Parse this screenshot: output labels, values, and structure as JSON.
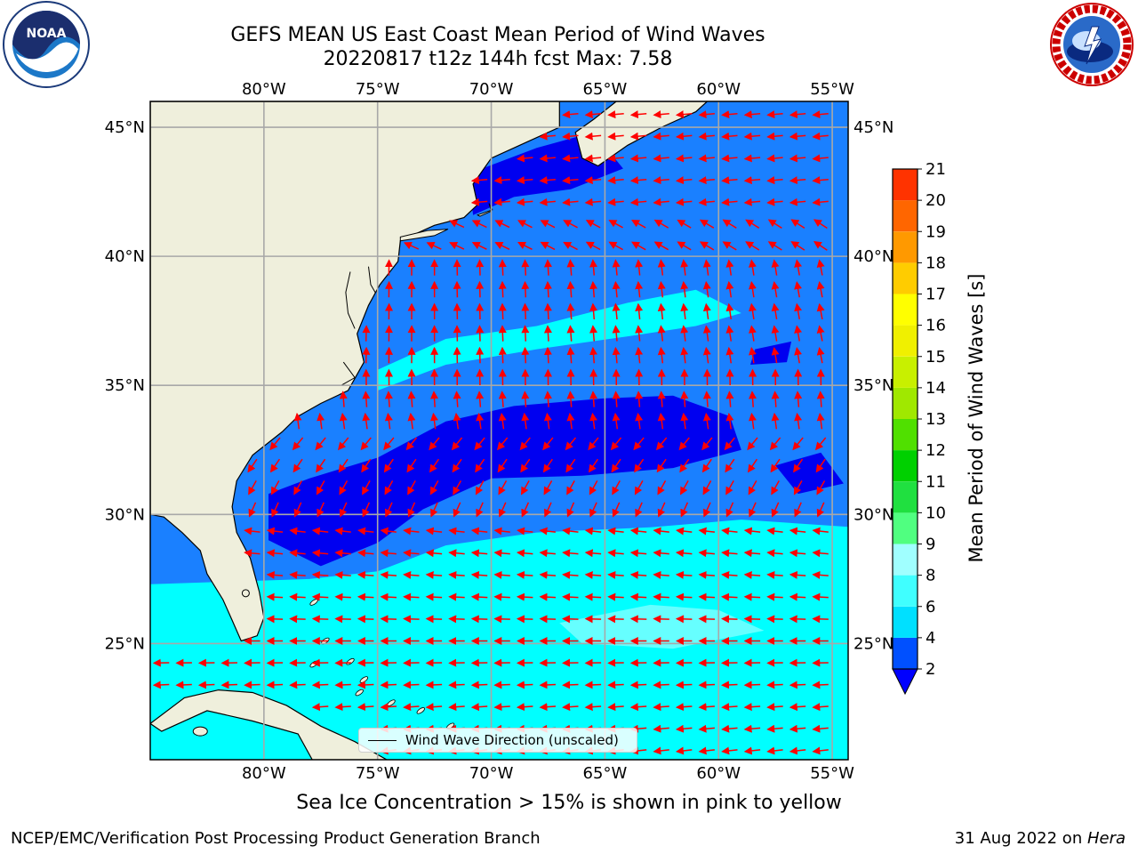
{
  "title": {
    "line1": "GEFS MEAN US East Coast Mean Period of Wind Waves",
    "line2": "20220817 t12z 144h fcst   Max: 7.58"
  },
  "map": {
    "projection": "PlateCarree",
    "lon_range": [
      -85,
      -54.3
    ],
    "lat_range": [
      20.5,
      46.0
    ],
    "lon_ticks": [
      -80,
      -75,
      -70,
      -65,
      -60,
      -55
    ],
    "lat_ticks": [
      25,
      30,
      35,
      40,
      45
    ],
    "lon_tick_labels": [
      "80°W",
      "75°W",
      "70°W",
      "65°W",
      "60°W",
      "55°W"
    ],
    "lat_tick_labels": [
      "25°N",
      "30°N",
      "35°N",
      "40°N",
      "45°N"
    ],
    "gridlines": true,
    "land_color": "#efefdc",
    "coastline_color": "#000000",
    "arrow_color": "#ff0000",
    "field_colors": {
      "level_0_2": "#0000f0",
      "level_2_4": "#1a80ff",
      "level_4_6": "#00ffff",
      "level_6_8": "#66ffff"
    },
    "field_regions": [
      {
        "level": "2-4",
        "description_lon_lat": "bulk of basin north of ~29N and Gulf stream region"
      },
      {
        "level": "0-2",
        "description_lon_lat": "deep blue band 77W-58W around 31N-35N, and Gulf of Maine"
      },
      {
        "level": "4-6",
        "description_lon_lat": "cyan area south of ~28N, and band 38N-36N offshore"
      }
    ]
  },
  "legend": {
    "label": "Wind Wave Direction (unscaled)"
  },
  "colorbar": {
    "label": "Mean Period of Wind Waves [s]",
    "ticks": [
      "2",
      "4",
      "6",
      "8",
      "9",
      "10",
      "11",
      "12",
      "13",
      "14",
      "15",
      "16",
      "17",
      "18",
      "19",
      "20",
      "21"
    ],
    "colors": [
      "#0050ff",
      "#00e0ff",
      "#40ffff",
      "#a0ffff",
      "#50ff80",
      "#20e040",
      "#00d000",
      "#50e000",
      "#a0e800",
      "#c8f000",
      "#f0f000",
      "#ffff00",
      "#ffcc00",
      "#ff9900",
      "#ff6600",
      "#ff3300",
      "#ff0000"
    ],
    "under_color": "#0000ff",
    "extend": "min"
  },
  "caption": "Sea Ice Concentration > 15% is shown in pink to yellow",
  "footer": {
    "left": "NCEP/EMC/Verification Post Processing Product Generation Branch",
    "right_date": "31 Aug 2022 on ",
    "right_host": "Hera"
  },
  "logos": {
    "left": "noaa-logo",
    "right": "nws-logo"
  }
}
